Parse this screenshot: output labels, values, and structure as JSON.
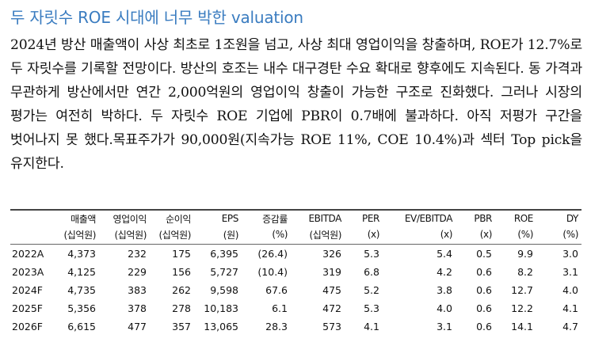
{
  "headline": "두 자릿수 ROE 시대에 너무 박한 valuation",
  "body": "2024년 방산 매출액이 사상 최초로 1조원을 넘고, 사상 최대 영업이익을 창출하며, ROE가 12.7%로 두 자릿수를 기록할 전망이다. 방산의 호조는 내수 대구경탄 수요 확대로 향후에도 지속된다. 동 가격과 무관하게 방산에서만 연간 2,000억원의 영업이익 창출이 가능한 구조로 진화했다. 그러나 시장의 평가는 여전히 박하다. 두 자릿수 ROE 기업에 PBR이 0.7배에 불과하다. 아직 저평가 구간을 벗어나지 못 했다.목표주가가 90,000원(지속가능 ROE 11%, COE 10.4%)과 섹터 Top pick을 유지한다.",
  "table": {
    "header1": [
      "",
      "매출액",
      "영업이익",
      "순이익",
      "EPS",
      "증감률",
      "EBITDA",
      "PER",
      "EV/EBITDA",
      "PBR",
      "ROE",
      "DY"
    ],
    "header2": [
      "",
      "(십억원)",
      "(십억원)",
      "(십억원)",
      "(원)",
      "(%)",
      "(십억원)",
      "(x)",
      "(x)",
      "(x)",
      "(%)",
      "(%)"
    ],
    "rows": [
      [
        "2022A",
        "4,373",
        "232",
        "175",
        "6,395",
        "(26.4)",
        "326",
        "5.3",
        "5.4",
        "0.5",
        "9.9",
        "3.0"
      ],
      [
        "2023A",
        "4,125",
        "229",
        "156",
        "5,727",
        "(10.4)",
        "319",
        "6.8",
        "4.2",
        "0.6",
        "8.2",
        "3.1"
      ],
      [
        "2024F",
        "4,735",
        "383",
        "262",
        "9,598",
        "67.6",
        "475",
        "5.2",
        "3.8",
        "0.6",
        "12.7",
        "4.0"
      ],
      [
        "2025F",
        "5,356",
        "378",
        "278",
        "10,183",
        "6.1",
        "472",
        "5.3",
        "4.0",
        "0.6",
        "12.2",
        "4.1"
      ],
      [
        "2026F",
        "6,615",
        "477",
        "357",
        "13,065",
        "28.3",
        "573",
        "4.1",
        "3.1",
        "0.6",
        "14.1",
        "4.7"
      ]
    ]
  }
}
